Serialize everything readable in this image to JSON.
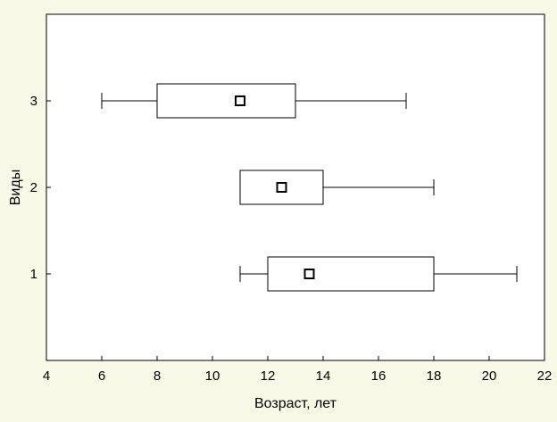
{
  "chart_data": {
    "type": "boxplot",
    "orientation": "horizontal",
    "title": "",
    "xlabel": "Возраст, лет",
    "ylabel": "Виды",
    "xlim": [
      4,
      22
    ],
    "x_ticks": [
      4,
      6,
      8,
      10,
      12,
      14,
      16,
      18,
      20,
      22
    ],
    "ylim": [
      0,
      4
    ],
    "y_ticks": [
      1,
      2,
      3
    ],
    "grid": false,
    "series": [
      {
        "category": "1",
        "whisker_low": 11,
        "q1": 12,
        "center": 13.5,
        "q3": 18,
        "whisker_high": 21
      },
      {
        "category": "2",
        "whisker_low": 11,
        "q1": 11,
        "center": 12.5,
        "q3": 14,
        "whisker_high": 18
      },
      {
        "category": "3",
        "whisker_low": 6,
        "q1": 8,
        "center": 11,
        "q3": 13,
        "whisker_high": 17
      }
    ],
    "colors": {
      "background": "#f9f9e8",
      "plot_area": "#ffffff",
      "stroke": "#000000"
    }
  }
}
